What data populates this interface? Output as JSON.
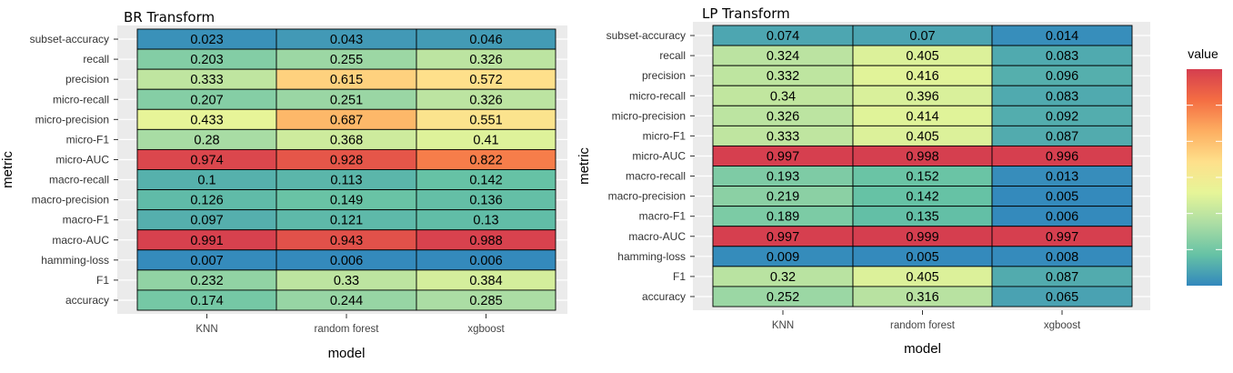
{
  "chart_data": [
    {
      "type": "heatmap",
      "title": "BR Transform",
      "xlabel": "model",
      "ylabel": "metric",
      "x_categories": [
        "KNN",
        "random forest",
        "xgboost"
      ],
      "y_categories": [
        "subset-accuracy",
        "recall",
        "precision",
        "micro-recall",
        "micro-precision",
        "micro-F1",
        "micro-AUC",
        "macro-recall",
        "macro-precision",
        "macro-F1",
        "macro-AUC",
        "hamming-loss",
        "F1",
        "accuracy"
      ],
      "values": [
        [
          "0.023",
          "0.043",
          "0.046"
        ],
        [
          "0.203",
          "0.255",
          "0.326"
        ],
        [
          "0.333",
          "0.615",
          "0.572"
        ],
        [
          "0.207",
          "0.251",
          "0.326"
        ],
        [
          "0.433",
          "0.687",
          "0.551"
        ],
        [
          "0.28",
          "0.368",
          "0.41"
        ],
        [
          "0.974",
          "0.928",
          "0.822"
        ],
        [
          "0.1",
          "0.113",
          "0.142"
        ],
        [
          "0.126",
          "0.149",
          "0.136"
        ],
        [
          "0.097",
          "0.121",
          "0.13"
        ],
        [
          "0.991",
          "0.943",
          "0.988"
        ],
        [
          "0.007",
          "0.006",
          "0.006"
        ],
        [
          "0.232",
          "0.33",
          "0.384"
        ],
        [
          "0.174",
          "0.244",
          "0.285"
        ]
      ]
    },
    {
      "type": "heatmap",
      "title": "LP Transform",
      "xlabel": "model",
      "ylabel": "metric",
      "x_categories": [
        "KNN",
        "random forest",
        "xgboost"
      ],
      "y_categories": [
        "subset-accuracy",
        "recall",
        "precision",
        "micro-recall",
        "micro-precision",
        "micro-F1",
        "micro-AUC",
        "macro-recall",
        "macro-precision",
        "macro-F1",
        "macro-AUC",
        "hamming-loss",
        "F1",
        "accuracy"
      ],
      "values": [
        [
          "0.074",
          "0.07",
          "0.014"
        ],
        [
          "0.324",
          "0.405",
          "0.083"
        ],
        [
          "0.332",
          "0.416",
          "0.096"
        ],
        [
          "0.34",
          "0.396",
          "0.083"
        ],
        [
          "0.326",
          "0.414",
          "0.092"
        ],
        [
          "0.333",
          "0.405",
          "0.087"
        ],
        [
          "0.997",
          "0.998",
          "0.996"
        ],
        [
          "0.193",
          "0.152",
          "0.013"
        ],
        [
          "0.219",
          "0.142",
          "0.005"
        ],
        [
          "0.189",
          "0.135",
          "0.006"
        ],
        [
          "0.997",
          "0.999",
          "0.997"
        ],
        [
          "0.009",
          "0.005",
          "0.008"
        ],
        [
          "0.32",
          "0.405",
          "0.087"
        ],
        [
          "0.252",
          "0.316",
          "0.065"
        ]
      ]
    }
  ],
  "legend": {
    "title": "value",
    "placement": "right",
    "colors": [
      "#3288bd",
      "#66c2a5",
      "#abdda4",
      "#e6f598",
      "#fee08b",
      "#fdae61",
      "#f46d43",
      "#d53e4f"
    ]
  }
}
